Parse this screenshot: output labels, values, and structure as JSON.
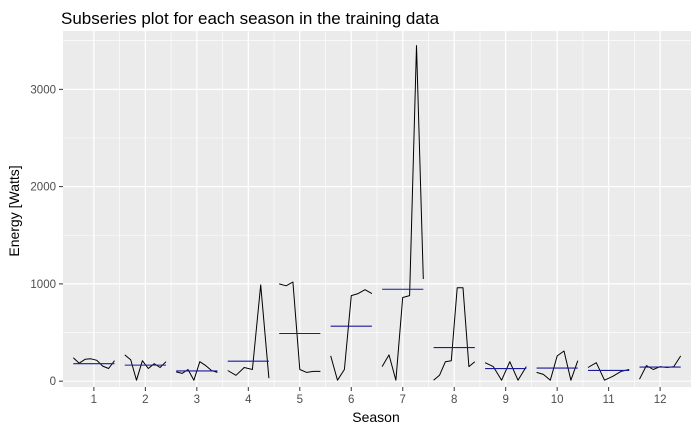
{
  "chart_data": {
    "type": "line",
    "title": "Subseries plot for each season in the training data",
    "xlabel": "Season",
    "ylabel": "Energy [Watts]",
    "x_ticks": [
      "1",
      "2",
      "3",
      "4",
      "5",
      "6",
      "7",
      "8",
      "9",
      "10",
      "11",
      "12"
    ],
    "y_ticks": [
      0,
      1000,
      2000,
      3000
    ],
    "ylim": [
      -60,
      3600
    ],
    "grid": true,
    "series": [
      {
        "season": "1",
        "values": [
          240,
          185,
          225,
          230,
          215,
          155,
          130,
          210
        ],
        "mean": 180
      },
      {
        "season": "2",
        "values": [
          270,
          220,
          10,
          210,
          130,
          180,
          140,
          200
        ],
        "mean": 165
      },
      {
        "season": "3",
        "values": [
          95,
          80,
          120,
          10,
          200,
          160,
          110,
          90
        ],
        "mean": 105
      },
      {
        "season": "4",
        "values": [
          110,
          60,
          140,
          120,
          990,
          30
        ],
        "mean": 205
      },
      {
        "season": "5",
        "values": [
          1000,
          980,
          1020,
          120,
          90,
          100,
          100
        ],
        "mean": 490
      },
      {
        "season": "6",
        "values": [
          260,
          10,
          120,
          880,
          900,
          940,
          900
        ],
        "mean": 565
      },
      {
        "season": "7",
        "values": [
          150,
          270,
          10,
          860,
          880,
          3450,
          1050
        ],
        "mean": 945
      },
      {
        "season": "8",
        "values": [
          10,
          60,
          200,
          210,
          960,
          960,
          150,
          200
        ],
        "mean": 345
      },
      {
        "season": "9",
        "values": [
          190,
          150,
          10,
          200,
          10,
          150
        ],
        "mean": 130
      },
      {
        "season": "10",
        "values": [
          90,
          70,
          10,
          260,
          310,
          10,
          210
        ],
        "mean": 135
      },
      {
        "season": "11",
        "values": [
          140,
          190,
          10,
          50,
          100,
          120
        ],
        "mean": 110
      },
      {
        "season": "12",
        "values": [
          20,
          160,
          120,
          150,
          140,
          150,
          260
        ],
        "mean": 145
      }
    ],
    "colors": {
      "panel_background": "#ebebeb",
      "grid": "#ffffff",
      "series_line": "#000000",
      "mean_line": "#1a1a9c"
    }
  }
}
